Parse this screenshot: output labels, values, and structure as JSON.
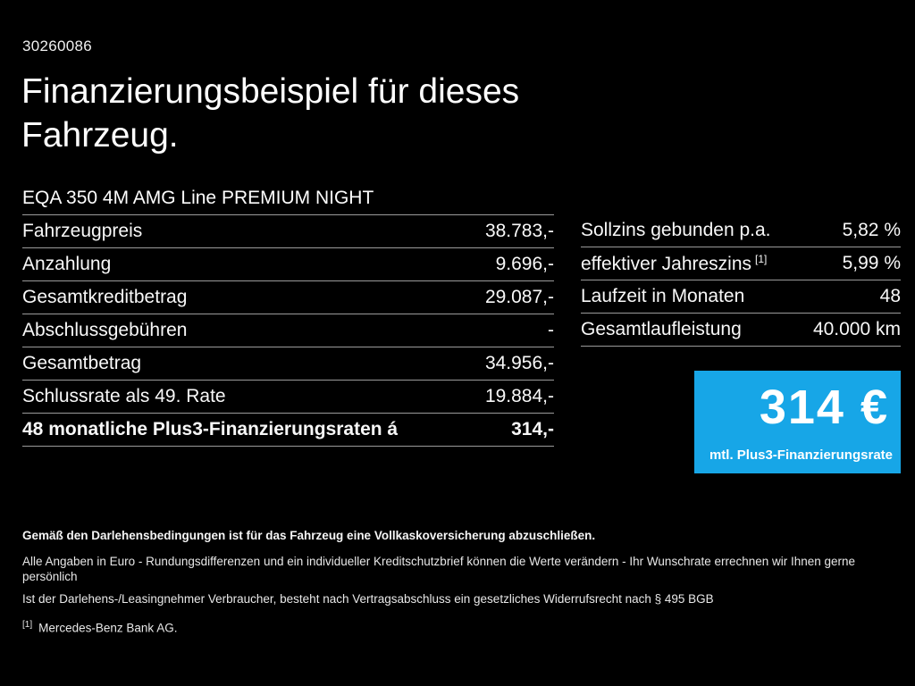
{
  "header": {
    "reference_number": "30260086",
    "title_lines": [
      "Finanzierungsbeispiel für dieses",
      "Fahrzeug."
    ],
    "model_name": "EQA 350 4M AMG Line PREMIUM NIGHT"
  },
  "finance_table": {
    "rows": [
      {
        "label": "Fahrzeugpreis",
        "value": "38.783,-"
      },
      {
        "label": "Anzahlung",
        "value": "9.696,-"
      },
      {
        "label": "Gesamtkreditbetrag",
        "value": "29.087,-"
      },
      {
        "label": "Abschlussgebühren",
        "value": "-"
      },
      {
        "label": "Gesamtbetrag",
        "value": "34.956,-"
      },
      {
        "label": "Schlussrate als 49. Rate",
        "value": "19.884,-"
      },
      {
        "label": "48 monatliche Plus3-Finanzierungsraten á",
        "value": "314,-"
      }
    ]
  },
  "conditions_table": {
    "rows": [
      {
        "label": "Sollzins gebunden p.a.",
        "footnote": "",
        "value": "5,82 %"
      },
      {
        "label": "effektiver Jahreszins",
        "footnote": "[1]",
        "value": "5,99 %"
      },
      {
        "label": "Laufzeit in Monaten",
        "footnote": "",
        "value": "48"
      },
      {
        "label": "Gesamtlaufleistung",
        "footnote": "",
        "value": "40.000 km"
      }
    ]
  },
  "rate_box": {
    "amount": "314 €",
    "caption": "mtl. Plus3-Finanzierungsrate",
    "background_color": "#17a6e7",
    "text_color": "#ffffff"
  },
  "footer": {
    "insurance_note": "Gemäß den Darlehensbedingungen ist für das Fahrzeug eine Vollkaskoversicherung abzuschließen.",
    "disclaimer_line1": "Alle Angaben in Euro - Rundungsdifferenzen und ein individueller Kreditschutzbrief können die Werte verändern - Ihr Wunschrate errechnen wir Ihnen gerne persönlich",
    "disclaimer_line2": "Ist der Darlehens-/Leasingnehmer Verbraucher, besteht nach Vertragsabschluss ein gesetzliches Widerrufsrecht nach § 495 BGB",
    "footnote_marker": "[1]",
    "footnote_text": "Mercedes-Benz Bank AG."
  },
  "colors": {
    "background": "#000000",
    "divider": "#9a9a9a",
    "accent_blue": "#17a6e7"
  }
}
